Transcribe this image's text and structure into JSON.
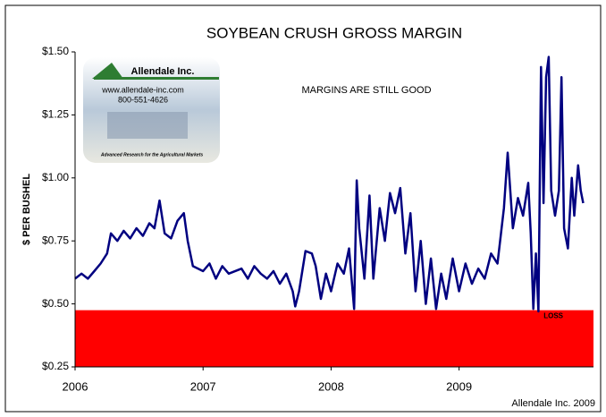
{
  "chart_data": {
    "type": "line",
    "title": "SOYBEAN CRUSH GROSS MARGIN",
    "y_label": "$ PER BUSHEL",
    "annotation": "MARGINS ARE STILL GOOD",
    "source": "Allendale Inc. 2009",
    "logo": {
      "name": "Allendale Inc.",
      "url": "www.allendale-inc.com",
      "phone": "800-551-4626",
      "tagline": "Advanced Research for the Agricultural Markets"
    },
    "loss_band": {
      "label": "LOSS",
      "range": [
        0.25,
        0.475
      ],
      "color": "#ff0000"
    },
    "xlim": [
      2006,
      2010.05
    ],
    "xticks": [
      2006,
      2007,
      2008,
      2009
    ],
    "ylim": [
      0.25,
      1.5
    ],
    "yticks": [
      {
        "value": 0.25,
        "label": "$0.25"
      },
      {
        "value": 0.5,
        "label": "$0.50"
      },
      {
        "value": 0.75,
        "label": "$0.75"
      },
      {
        "value": 1.0,
        "label": "$1.00"
      },
      {
        "value": 1.25,
        "label": "$1.25"
      },
      {
        "value": 1.5,
        "label": "$1.50"
      }
    ],
    "grid": false,
    "series": [
      {
        "color": "#000080",
        "x": [
          2006.0,
          2006.05,
          2006.1,
          2006.15,
          2006.2,
          2006.25,
          2006.28,
          2006.33,
          2006.38,
          2006.43,
          2006.48,
          2006.53,
          2006.58,
          2006.62,
          2006.66,
          2006.7,
          2006.75,
          2006.8,
          2006.85,
          2006.88,
          2006.92,
          2007.0,
          2007.05,
          2007.1,
          2007.15,
          2007.2,
          2007.3,
          2007.35,
          2007.4,
          2007.45,
          2007.5,
          2007.55,
          2007.6,
          2007.65,
          2007.7,
          2007.72,
          2007.75,
          2007.8,
          2007.85,
          2007.88,
          2007.92,
          2007.96,
          2008.0,
          2008.05,
          2008.1,
          2008.14,
          2008.18,
          2008.2,
          2008.22,
          2008.26,
          2008.3,
          2008.33,
          2008.38,
          2008.42,
          2008.46,
          2008.5,
          2008.54,
          2008.58,
          2008.62,
          2008.66,
          2008.7,
          2008.74,
          2008.78,
          2008.82,
          2008.86,
          2008.9,
          2008.95,
          2009.0,
          2009.05,
          2009.1,
          2009.15,
          2009.2,
          2009.25,
          2009.3,
          2009.35,
          2009.38,
          2009.42,
          2009.46,
          2009.5,
          2009.54,
          2009.56,
          2009.58,
          2009.6,
          2009.62,
          2009.64,
          2009.66,
          2009.68,
          2009.7,
          2009.72,
          2009.75,
          2009.78,
          2009.8,
          2009.82,
          2009.85,
          2009.88,
          2009.9,
          2009.93,
          2009.95,
          2009.97
        ],
        "values": [
          0.6,
          0.62,
          0.6,
          0.63,
          0.66,
          0.7,
          0.78,
          0.75,
          0.79,
          0.76,
          0.8,
          0.77,
          0.82,
          0.8,
          0.91,
          0.78,
          0.76,
          0.83,
          0.86,
          0.75,
          0.65,
          0.63,
          0.66,
          0.6,
          0.65,
          0.62,
          0.64,
          0.6,
          0.65,
          0.62,
          0.6,
          0.63,
          0.58,
          0.62,
          0.55,
          0.49,
          0.55,
          0.71,
          0.7,
          0.65,
          0.52,
          0.62,
          0.55,
          0.66,
          0.62,
          0.72,
          0.48,
          0.99,
          0.8,
          0.6,
          0.93,
          0.6,
          0.88,
          0.75,
          0.94,
          0.86,
          0.96,
          0.7,
          0.86,
          0.55,
          0.75,
          0.5,
          0.68,
          0.48,
          0.62,
          0.52,
          0.68,
          0.55,
          0.66,
          0.58,
          0.64,
          0.6,
          0.7,
          0.66,
          0.88,
          1.1,
          0.8,
          0.92,
          0.85,
          0.98,
          0.78,
          0.48,
          0.7,
          0.47,
          1.44,
          0.9,
          1.4,
          1.48,
          0.95,
          0.85,
          0.95,
          1.4,
          0.8,
          0.72,
          1.0,
          0.85,
          1.05,
          0.95,
          0.9
        ]
      }
    ]
  }
}
